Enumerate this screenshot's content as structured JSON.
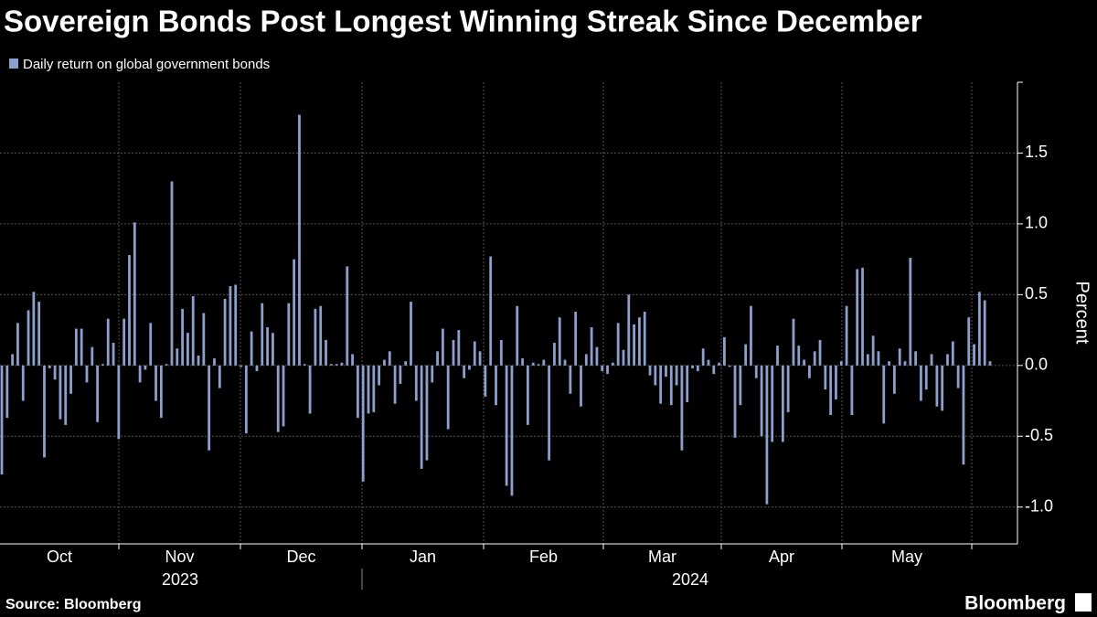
{
  "chart_data": {
    "type": "bar",
    "title": "Sovereign Bonds Post Longest Winning Streak Since December",
    "legend_label": "Daily return on global government bonds",
    "y_label": "Percent",
    "source": "Source: Bloomberg",
    "brand": "Bloomberg",
    "color": "#8d9fcd",
    "grid": true,
    "months": [
      "Oct",
      "Nov",
      "Dec",
      "Jan",
      "Feb",
      "Mar",
      "Apr",
      "May"
    ],
    "years": [
      "2023",
      "2024"
    ],
    "ylim": [
      -1.26,
      2.0
    ],
    "yticks": [
      {
        "value": -1,
        "label": "-1.0"
      },
      -0.5,
      {
        "value": 0,
        "label": "0.0"
      },
      0.5,
      {
        "value": 1,
        "label": "1.0"
      },
      1.5
    ],
    "values": [
      -0.77,
      -0.37,
      0.08,
      0.3,
      -0.25,
      0.39,
      0.52,
      0.45,
      -0.65,
      -0.02,
      -0.1,
      -0.38,
      -0.42,
      -0.2,
      0.26,
      0.26,
      -0.12,
      0.13,
      -0.4,
      0.01,
      0.33,
      0.16,
      -0.52,
      0.33,
      0.78,
      1.01,
      -0.12,
      -0.03,
      0.3,
      -0.25,
      -0.37,
      0.01,
      1.3,
      0.12,
      0.4,
      0.23,
      0.49,
      0.07,
      0.37,
      -0.6,
      0.05,
      -0.16,
      0.47,
      0.56,
      0.57,
      -0.01,
      -0.48,
      0.24,
      -0.04,
      0.44,
      0.27,
      0.23,
      -0.47,
      -0.43,
      0.44,
      0.75,
      1.77,
      0.01,
      -0.34,
      0.4,
      0.42,
      0.18,
      0.01,
      0.01,
      0.02,
      0.7,
      0.08,
      -0.37,
      -0.82,
      -0.34,
      -0.33,
      -0.14,
      0.04,
      0.1,
      -0.27,
      -0.13,
      0.03,
      0.45,
      -0.25,
      -0.73,
      -0.67,
      -0.12,
      0.1,
      0.26,
      -0.45,
      0.18,
      0.25,
      -0.09,
      -0.03,
      0.17,
      0.1,
      -0.22,
      0.77,
      -0.28,
      0.18,
      -0.85,
      -0.92,
      0.42,
      0.05,
      -0.42,
      0.02,
      0.01,
      0.04,
      -0.67,
      0.16,
      0.34,
      0.04,
      -0.2,
      0.38,
      -0.29,
      0.08,
      0.27,
      0.13,
      -0.04,
      -0.06,
      0.02,
      0.3,
      0.11,
      0.5,
      0.29,
      0.34,
      0.38,
      -0.07,
      -0.14,
      -0.27,
      -0.08,
      -0.28,
      -0.14,
      -0.6,
      -0.26,
      -0.02,
      -0.04,
      0.12,
      0.04,
      -0.06,
      0.02,
      0.2,
      -0.01,
      -0.51,
      -0.28,
      0.15,
      0.42,
      -0.09,
      -0.5,
      -0.98,
      -0.54,
      0.14,
      -0.54,
      -0.33,
      0.33,
      0.14,
      0.04,
      -0.09,
      0.1,
      0.18,
      -0.17,
      -0.35,
      -0.24,
      0.03,
      0.42,
      -0.35,
      0.68,
      0.69,
      0.08,
      0.21,
      0.1,
      -0.41,
      0.03,
      -0.2,
      0.12,
      0.03,
      0.76,
      0.1,
      -0.25,
      -0.17,
      0.08,
      -0.29,
      -0.32,
      0.08,
      0.17,
      -0.16,
      -0.7,
      0.34,
      0.15,
      0.52,
      0.46,
      0.03
    ]
  }
}
